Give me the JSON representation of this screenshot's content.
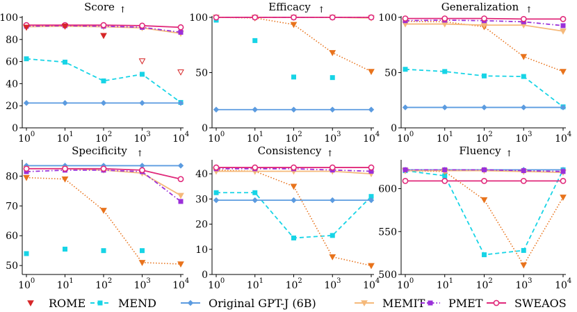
{
  "series_styles": {
    "ROME": {
      "color": "#d62728",
      "marker": "tri",
      "line": "none"
    },
    "MEND": {
      "color": "#17d4e6",
      "marker": "square",
      "line": "dash"
    },
    "GPTJ": {
      "color": "#5b9be0",
      "marker": "diamond",
      "line": "solid"
    },
    "MEMIT": {
      "color": "#f5b97a",
      "marker": "tri",
      "line": "solid"
    },
    "PMET": {
      "color": "#9b30d9",
      "marker": "square",
      "line": "dashdot"
    },
    "SWEAOS": {
      "color": "#e0287a",
      "marker": "circle",
      "line": "solid"
    },
    "ROME2": {
      "color": "#e8731c",
      "marker": "tri",
      "line": "dot"
    }
  },
  "legend": [
    {
      "key": "ROME",
      "label": "ROME"
    },
    {
      "key": "MEND",
      "label": "MEND"
    },
    {
      "key": "GPTJ",
      "label": "Original GPT-J (6B)"
    },
    {
      "key": "MEMIT",
      "label": "MEMIT"
    },
    {
      "key": "PMET",
      "label": "PMET"
    },
    {
      "key": "SWEAOS",
      "label": "SWEAOS"
    }
  ],
  "x_tick_labels": [
    "0",
    "1",
    "2",
    "3",
    "4"
  ],
  "x_tick_base": "10",
  "chart_data": [
    {
      "type": "line",
      "title": "Score",
      "title_arrow": "↑",
      "x": [
        0,
        1,
        2,
        3,
        4
      ],
      "ylim": [
        0,
        100
      ],
      "yticks": [
        0,
        20,
        40,
        60,
        80,
        100
      ],
      "series": [
        {
          "name": "MEND",
          "key": "MEND",
          "values": [
            62.5,
            59.5,
            42.5,
            48.5,
            23
          ]
        },
        {
          "name": "Original GPT-J (6B)",
          "key": "GPTJ",
          "values": [
            22.5,
            22.5,
            22.5,
            22.5,
            22.5
          ]
        },
        {
          "name": "MEMIT",
          "key": "MEMIT",
          "values": [
            91.5,
            92,
            91.5,
            90.5,
            85.5
          ]
        },
        {
          "name": "PMET",
          "key": "PMET",
          "values": [
            92,
            92.5,
            92,
            91,
            86.5
          ]
        },
        {
          "name": "SWEAOS",
          "key": "SWEAOS",
          "values": [
            93,
            93,
            93,
            92.5,
            91
          ]
        },
        {
          "name": "ROME (scattered)",
          "key": "ROME",
          "values": [
            91,
            92,
            83.5,
            null,
            null
          ]
        },
        {
          "name": "ROME (hollow)",
          "key": "ROME",
          "hollow": true,
          "values": [
            null,
            null,
            null,
            60.5,
            50.5
          ]
        }
      ]
    },
    {
      "type": "line",
      "title": "Efficacy",
      "title_arrow": "↑",
      "x": [
        0,
        1,
        2,
        3,
        4
      ],
      "ylim": [
        0,
        100
      ],
      "yticks": [
        0,
        50,
        100
      ],
      "series": [
        {
          "name": "MEND",
          "key": "MEND",
          "line": "none",
          "values": [
            97.5,
            79,
            46,
            45.5,
            null
          ]
        },
        {
          "name": "Original GPT-J (6B)",
          "key": "GPTJ",
          "values": [
            16.5,
            16.5,
            16.5,
            16.5,
            16.5
          ]
        },
        {
          "name": "ROME",
          "key": "ROME2",
          "values": [
            100,
            99.5,
            93.5,
            68,
            51
          ]
        },
        {
          "name": "MEMIT",
          "key": "MEMIT",
          "values": [
            100,
            100,
            100,
            100,
            99.5
          ]
        },
        {
          "name": "PMET",
          "key": "PMET",
          "values": [
            100,
            100,
            100,
            100,
            100
          ]
        },
        {
          "name": "SWEAOS",
          "key": "SWEAOS",
          "values": [
            100,
            100,
            100,
            100,
            100
          ]
        }
      ]
    },
    {
      "type": "line",
      "title": "Generalization",
      "title_arrow": "↑",
      "x": [
        0,
        1,
        2,
        3,
        4
      ],
      "ylim": [
        0,
        100
      ],
      "yticks": [
        0,
        50,
        100
      ],
      "series": [
        {
          "name": "MEND",
          "key": "MEND",
          "values": [
            53,
            51,
            47,
            46.5,
            19
          ]
        },
        {
          "name": "Original GPT-J (6B)",
          "key": "GPTJ",
          "values": [
            18.5,
            18.5,
            18.5,
            18.5,
            18.5
          ]
        },
        {
          "name": "ROME",
          "key": "ROME2",
          "values": [
            96.5,
            96,
            91.5,
            64.5,
            51
          ]
        },
        {
          "name": "MEMIT",
          "key": "MEMIT",
          "values": [
            94,
            94,
            93,
            93,
            87.5
          ]
        },
        {
          "name": "PMET",
          "key": "PMET",
          "values": [
            97,
            97.5,
            97,
            96,
            92.5
          ]
        },
        {
          "name": "SWEAOS",
          "key": "SWEAOS",
          "values": [
            99,
            99,
            99,
            98.5,
            98.5
          ]
        }
      ]
    },
    {
      "type": "line",
      "title": "Specificity",
      "title_arrow": "↑",
      "x": [
        0,
        1,
        2,
        3,
        4
      ],
      "ylim": [
        47,
        85
      ],
      "yticks": [
        50,
        60,
        70,
        80
      ],
      "series": [
        {
          "name": "MEND",
          "key": "MEND",
          "line": "none",
          "values": [
            54,
            55.5,
            55,
            55,
            null
          ]
        },
        {
          "name": "Original GPT-J (6B)",
          "key": "GPTJ",
          "values": [
            83.5,
            83.5,
            83.5,
            83.5,
            83.5
          ]
        },
        {
          "name": "ROME",
          "key": "ROME2",
          "values": [
            79.5,
            79,
            68.5,
            51,
            50.5
          ]
        },
        {
          "name": "MEMIT",
          "key": "MEMIT",
          "values": [
            82.5,
            82.5,
            82,
            81,
            73.5
          ]
        },
        {
          "name": "PMET",
          "key": "PMET",
          "values": [
            81.5,
            82,
            82,
            81.5,
            71.5
          ]
        },
        {
          "name": "SWEAOS",
          "key": "SWEAOS",
          "values": [
            82.5,
            82.5,
            82.5,
            82,
            79
          ]
        }
      ]
    },
    {
      "type": "line",
      "title": "Consistency",
      "title_arrow": "↑",
      "x": [
        0,
        1,
        2,
        3,
        4
      ],
      "ylim": [
        0,
        45
      ],
      "yticks": [
        0,
        10,
        20,
        30,
        40
      ],
      "series": [
        {
          "name": "MEND",
          "key": "MEND",
          "values": [
            32.5,
            32.5,
            14.5,
            15.5,
            31
          ]
        },
        {
          "name": "Original GPT-J (6B)",
          "key": "GPTJ",
          "values": [
            29.5,
            29.5,
            29.5,
            29.5,
            29.5
          ]
        },
        {
          "name": "ROME",
          "key": "ROME2",
          "values": [
            41.5,
            41,
            35,
            7,
            3.5
          ]
        },
        {
          "name": "MEMIT",
          "key": "MEMIT",
          "values": [
            41,
            41,
            41,
            41,
            40
          ]
        },
        {
          "name": "PMET",
          "key": "PMET",
          "values": [
            42,
            42,
            42,
            41.5,
            41
          ]
        },
        {
          "name": "SWEAOS",
          "key": "SWEAOS",
          "values": [
            42.5,
            42.5,
            42.5,
            42.5,
            42.5
          ]
        }
      ]
    },
    {
      "type": "line",
      "title": "Fluency",
      "title_arrow": "↑",
      "x": [
        0,
        1,
        2,
        3,
        4
      ],
      "ylim": [
        500,
        632
      ],
      "yticks": [
        500,
        550,
        600
      ],
      "series": [
        {
          "name": "MEND",
          "key": "MEND",
          "values": [
            621,
            615,
            523,
            528,
            622
          ]
        },
        {
          "name": "Original GPT-J (6B)",
          "key": "GPTJ",
          "values": [
            622,
            622,
            622,
            622,
            622
          ]
        },
        {
          "name": "ROME",
          "key": "ROME2",
          "values": [
            621,
            620,
            587,
            511,
            590
          ]
        },
        {
          "name": "MEMIT",
          "key": "MEMIT",
          "values": [
            621,
            621,
            621,
            620,
            619
          ]
        },
        {
          "name": "PMET",
          "key": "PMET",
          "values": [
            622,
            622,
            622,
            621,
            620
          ]
        },
        {
          "name": "SWEAOS",
          "key": "SWEAOS",
          "values": [
            609,
            609,
            609,
            609,
            609
          ]
        }
      ]
    }
  ]
}
